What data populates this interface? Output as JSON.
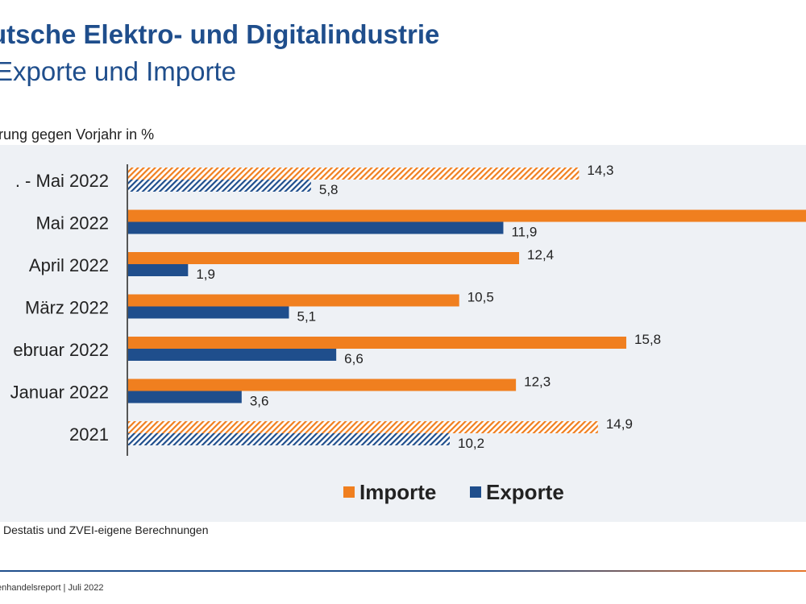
{
  "header": {
    "title": "utsche Elektro- und Digitalindustrie",
    "subtitle": "Exporte und Importe",
    "unit_label": "erung gegen Vorjahr in %"
  },
  "source_text": "Destatis und ZVEI-eigene Berechnungen",
  "footer_text": "enhandelsreport | Juli 2022",
  "colors": {
    "importe": "#f07f1f",
    "exporte": "#1f4e8c",
    "panel": "#eef1f5"
  },
  "chart_data": {
    "type": "bar",
    "orientation": "horizontal",
    "categories": [
      ". - Mai 2022",
      "Mai 2022",
      "April 2022",
      "März 2022",
      "ebruar 2022",
      "Januar 2022",
      "2021"
    ],
    "series": [
      {
        "name": "Importe",
        "values": [
          14.3,
          21.5,
          12.4,
          10.5,
          15.8,
          12.3,
          14.9
        ],
        "labels": [
          "14,3",
          "",
          "12,4",
          "10,5",
          "15,8",
          "12,3",
          "14,9"
        ]
      },
      {
        "name": "Exporte",
        "values": [
          5.8,
          11.9,
          1.9,
          5.1,
          6.6,
          3.6,
          10.2
        ],
        "labels": [
          "5,8",
          "11,9",
          "1,9",
          "5,1",
          "6,6",
          "3,6",
          "10,2"
        ]
      }
    ],
    "hatched_categories": [
      ". - Mai 2022",
      "2021"
    ],
    "xlim": [
      0,
      21.5
    ],
    "legend_position": "bottom-right"
  }
}
